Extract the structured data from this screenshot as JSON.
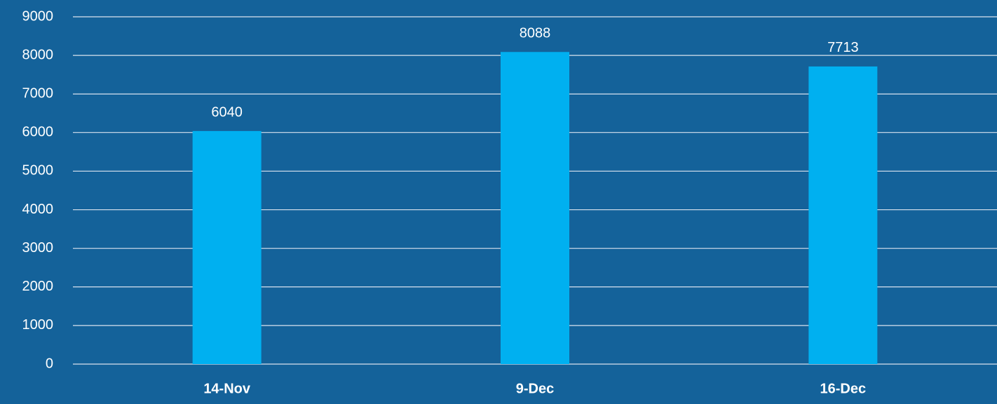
{
  "chart_data": {
    "type": "bar",
    "categories": [
      "14-Nov",
      "9-Dec",
      "16-Dec"
    ],
    "values": [
      6040,
      8088,
      7713
    ],
    "color": "#00b0f0",
    "ylim": [
      0,
      9000
    ],
    "yticks": [
      0,
      1000,
      2000,
      3000,
      4000,
      5000,
      6000,
      7000,
      8000,
      9000
    ],
    "grid": true,
    "data_labels": true
  }
}
